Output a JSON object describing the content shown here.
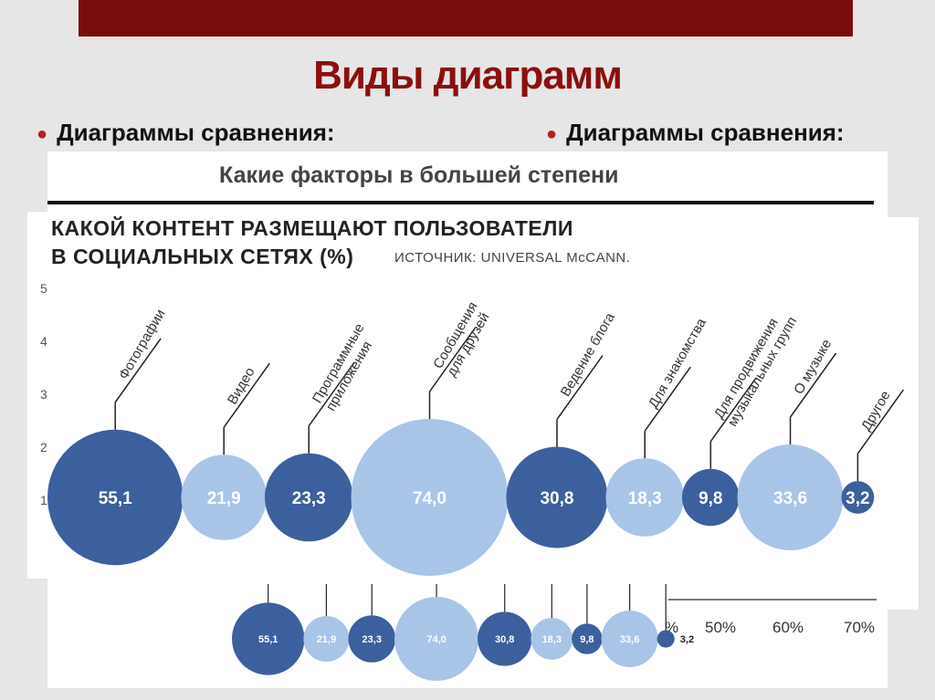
{
  "slide": {
    "title": "Виды диаграмм",
    "bullets": [
      "Диаграммы сравнения:",
      "Диаграммы сравнения:"
    ]
  },
  "back_chart": {
    "title": "Какие факторы в большей степени",
    "axis_ticks": [
      "%",
      "50%",
      "60%",
      "70%"
    ]
  },
  "y_axis_fragments": [
    "5",
    "4",
    "3",
    "2",
    "1"
  ],
  "colors": {
    "dark": "#3c5f9e",
    "light": "#a8c5e8",
    "accent": "#8b0f0f"
  },
  "chart_data": [
    {
      "type": "bubble",
      "title": "КАКОЙ КОНТЕНТ РАЗМЕЩАЮТ ПОЛЬЗОВАТЕЛИ",
      "title_line2": "В СОЦИАЛЬНЫХ СЕТЯХ (%)",
      "source": "ИСТОЧНИК: UNIVERSAL McCANN.",
      "categories": [
        "Фотографии",
        "Видео",
        "Программные приложения",
        "Сообщения для друзей",
        "Ведение блога",
        "Для знакомства",
        "Для продвижения музыкальных групп",
        "О музыке",
        "Другое"
      ],
      "category_lines": [
        [
          "Фотографии"
        ],
        [
          "Видео"
        ],
        [
          "Программные",
          "приложения"
        ],
        [
          "Сообщения",
          "для друзей"
        ],
        [
          "Ведение блога"
        ],
        [
          "Для знакомства"
        ],
        [
          "Для продвижения",
          "музыкальных групп"
        ],
        [
          "О музыке"
        ],
        [
          "Другое"
        ]
      ],
      "values": [
        55.1,
        21.9,
        23.3,
        74.0,
        30.8,
        18.3,
        9.8,
        33.6,
        3.2
      ],
      "labels": [
        "55,1",
        "21,9",
        "23,3",
        "74,0",
        "30,8",
        "18,3",
        "9,8",
        "33,6",
        "3,2"
      ],
      "shade": [
        "dark",
        "light",
        "dark",
        "light",
        "dark",
        "light",
        "dark",
        "light",
        "dark"
      ]
    },
    {
      "type": "bubble",
      "labels": [
        "55,1",
        "21,9",
        "23,3",
        "74,0",
        "30,8",
        "18,3",
        "9,8",
        "33,6",
        "3,2"
      ],
      "values": [
        55.1,
        21.9,
        23.3,
        74.0,
        30.8,
        18.3,
        9.8,
        33.6,
        3.2
      ],
      "shade": [
        "dark",
        "light",
        "dark",
        "light",
        "dark",
        "light",
        "dark",
        "light",
        "dark"
      ]
    }
  ]
}
